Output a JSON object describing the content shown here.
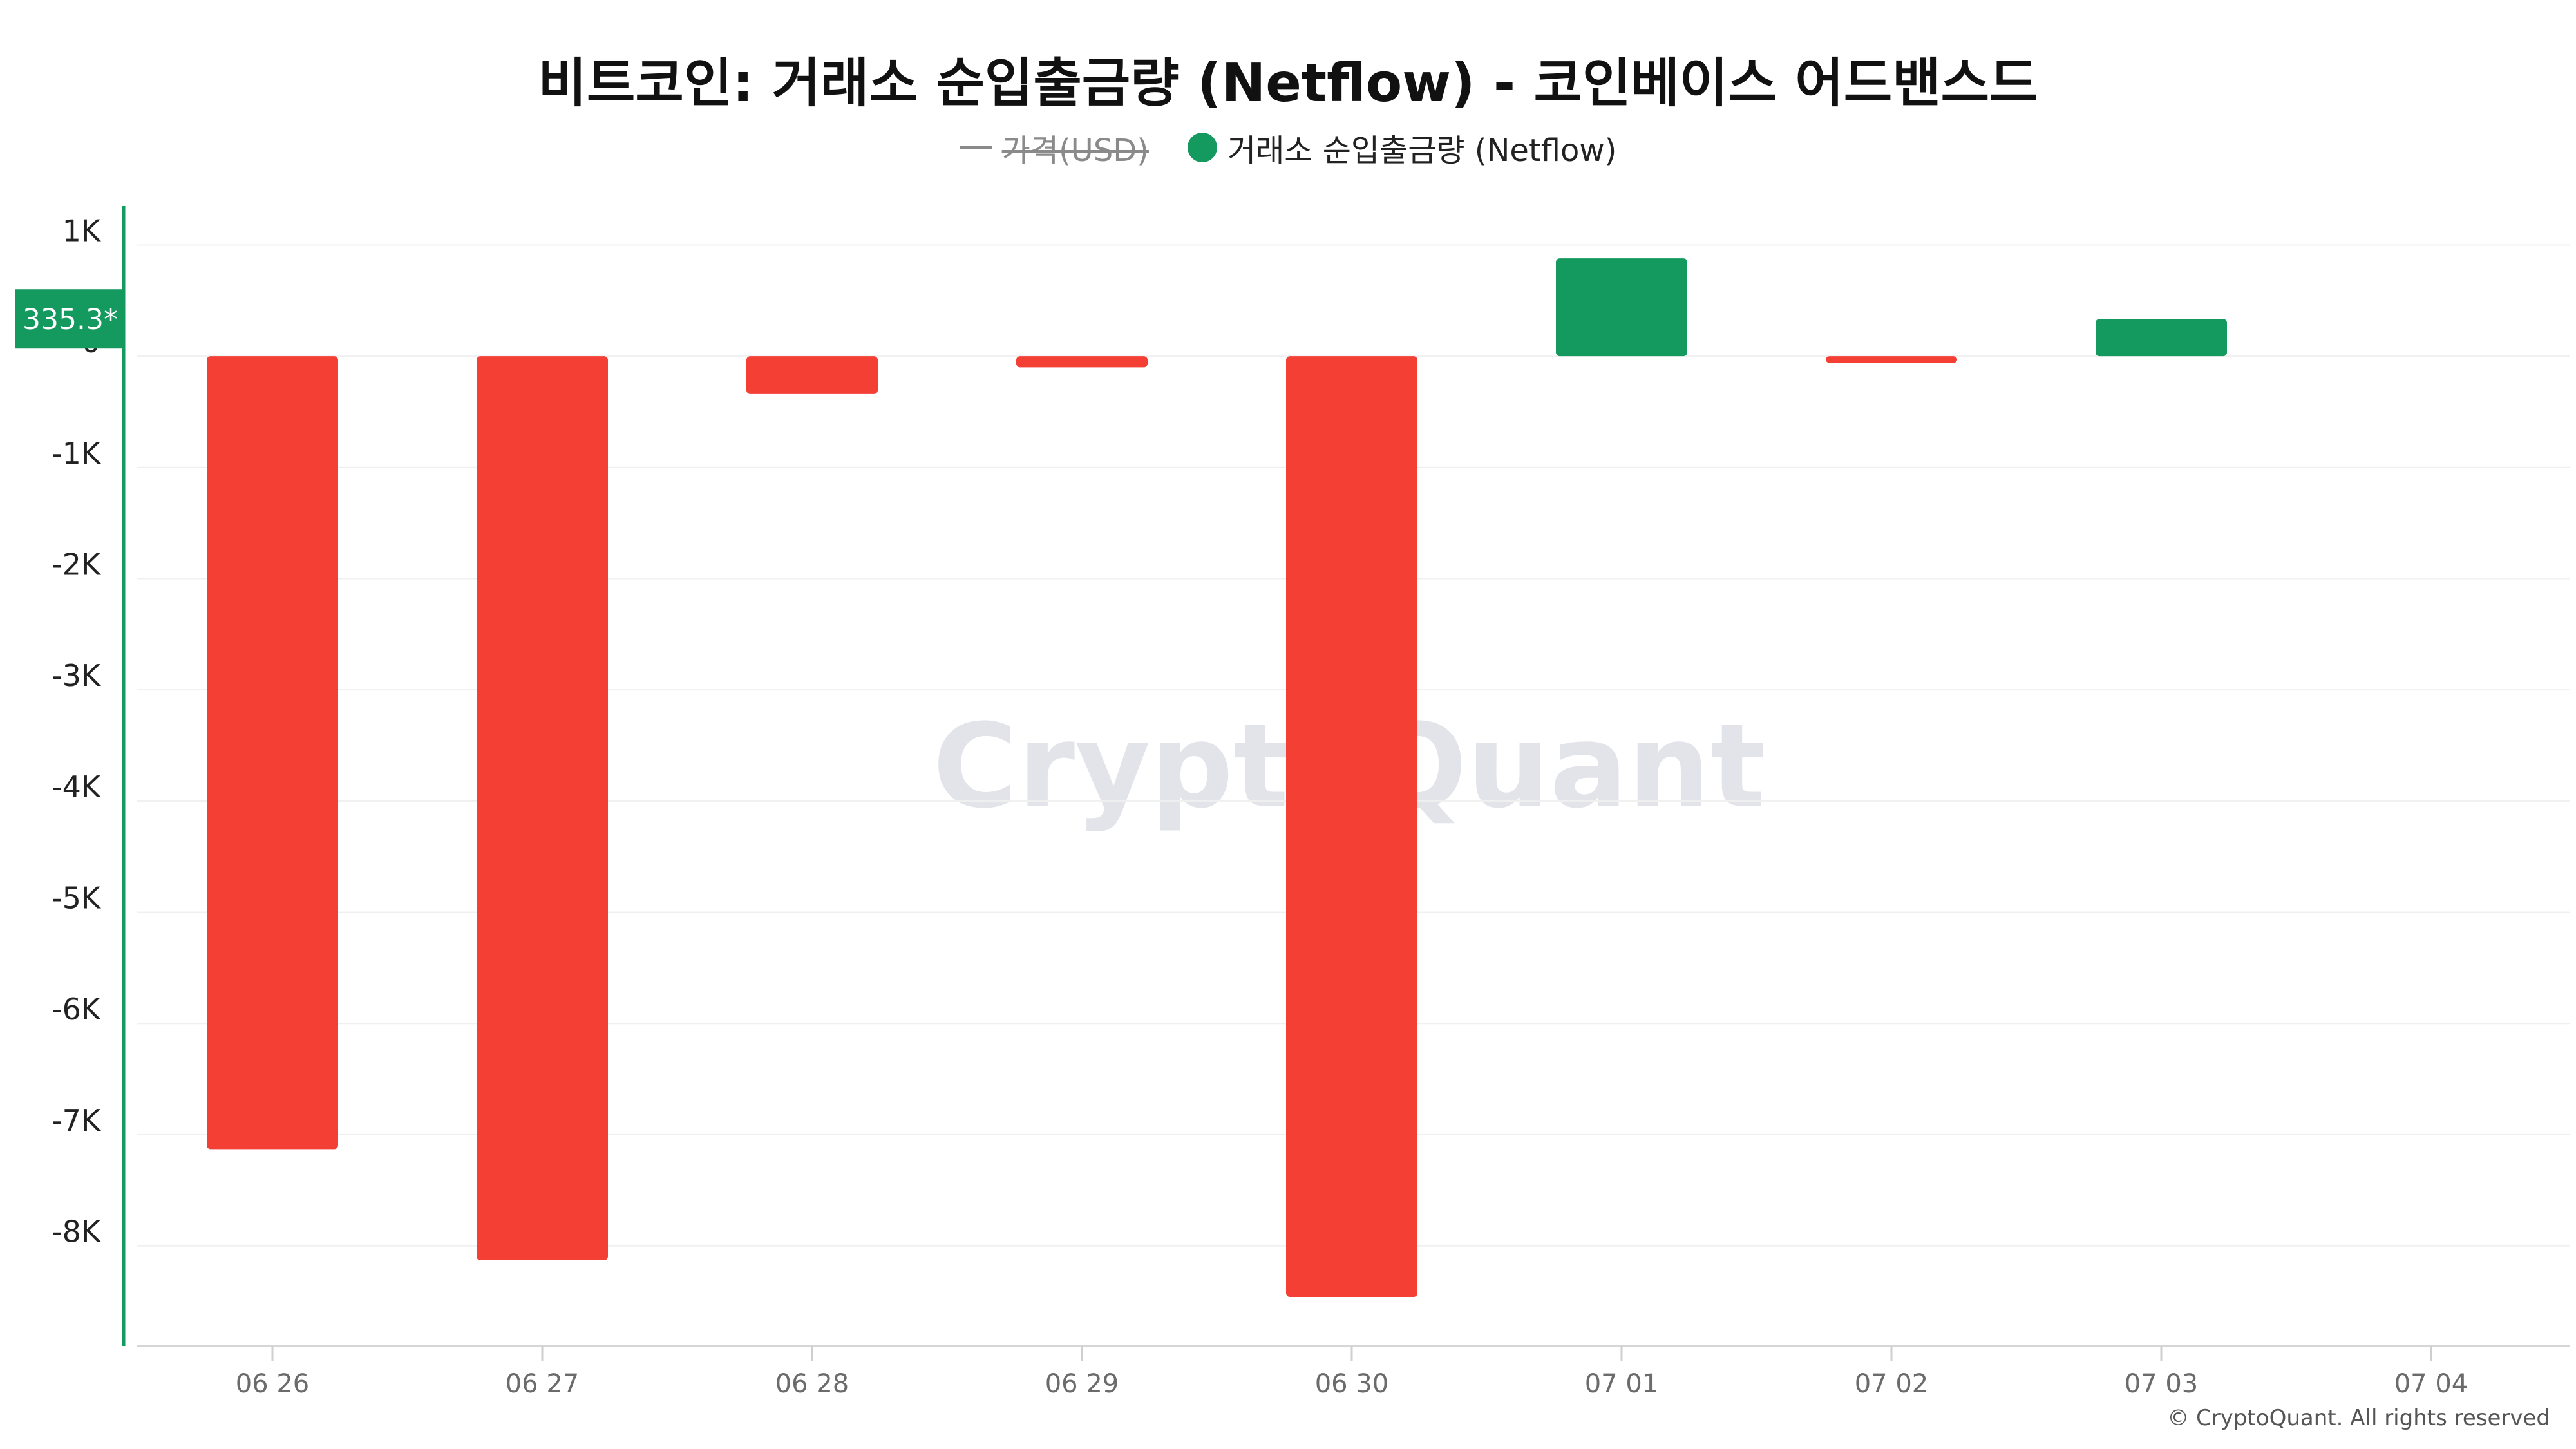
{
  "colors": {
    "positive": "#14995f",
    "negative": "#f43f35",
    "axis_line": "#14995f",
    "grid": "#f0f0f0",
    "tick_text": "#222222",
    "xtick_text": "#6b6b6b",
    "watermark": "#e3e4ea"
  },
  "watermark": "CryptoQuant",
  "copyright": "© CryptoQuant. All rights reserved",
  "chart_data": {
    "type": "bar",
    "title": "비트코인: 거래소 순입출금량 (Netflow) - 코인베이스 어드밴스드",
    "legend": [
      {
        "name": "가격(USD)",
        "marker": "line",
        "disabled": true
      },
      {
        "name": "거래소 순입출금량 (Netflow)",
        "marker": "dot",
        "disabled": false
      }
    ],
    "categories": [
      "06 26",
      "06 27",
      "06 28",
      "06 29",
      "06 30",
      "07 01",
      "07 02",
      "07 03",
      "07 04"
    ],
    "series": [
      {
        "name": "거래소 순입출금량 (Netflow)",
        "values": [
          -7130,
          -8130,
          -340,
          -100,
          -8460,
          880,
          -60,
          335.3,
          null
        ]
      }
    ],
    "ylim": [
      -8900,
      1350
    ],
    "yticks": [
      1000,
      0,
      -1000,
      -2000,
      -3000,
      -4000,
      -5000,
      -6000,
      -7000,
      -8000
    ],
    "ytick_labels": [
      "1K",
      "0",
      "-1K",
      "-2K",
      "-3K",
      "-4K",
      "-5K",
      "-6K",
      "-7K",
      "-8K"
    ],
    "current_value_label": "335.3*",
    "current_value": 335.3,
    "grid": true,
    "legend_position": "top-center"
  }
}
